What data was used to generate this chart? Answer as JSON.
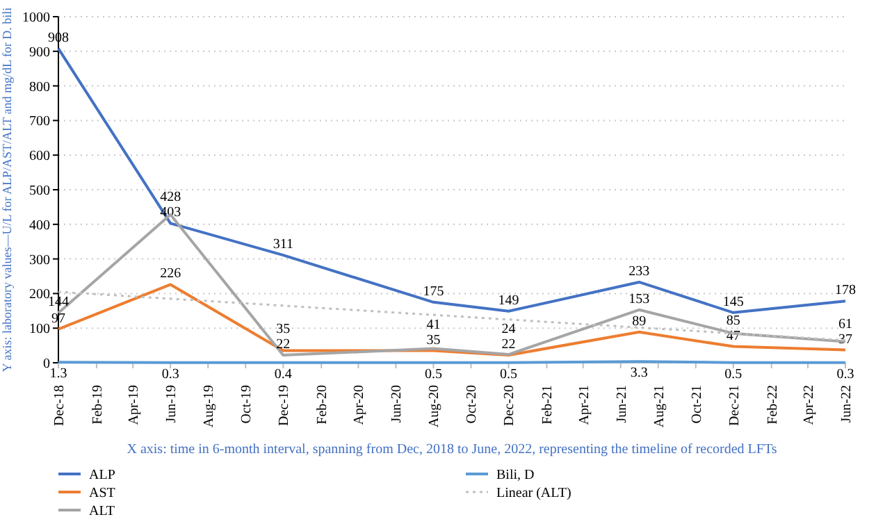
{
  "chart_data": {
    "type": "line",
    "xlabel": "X axis: time in 6-month interval, spanning from Dec, 2018 to June, 2022, representing the timeline of recorded LFTs",
    "ylabel": "Y axis: laboratory values—U/L for ALP/AST/ALT and mg/dL for D. bili",
    "x": [
      "2018-12",
      "2019-06",
      "2019-12",
      "2020-08",
      "2020-12",
      "2021-07",
      "2021-12",
      "2022-06"
    ],
    "series": [
      {
        "name": "ALP",
        "color": "#4472c4",
        "values": [
          908,
          403,
          311,
          175,
          149,
          233,
          145,
          178
        ]
      },
      {
        "name": "AST",
        "color": "#ed7d31",
        "values": [
          97,
          226,
          35,
          35,
          22,
          89,
          47,
          37
        ]
      },
      {
        "name": "ALT",
        "color": "#a5a5a5",
        "values": [
          144,
          428,
          22,
          41,
          24,
          153,
          85,
          61
        ]
      },
      {
        "name": "Bili, D",
        "color": "#5b9bd5",
        "values": [
          1.3,
          0.3,
          0.4,
          0.5,
          0.5,
          3.3,
          0.5,
          0.3
        ]
      },
      {
        "name": "Linear (ALT)",
        "color": "#bfbfbf",
        "type": "line",
        "line_style": "dotted",
        "x": [
          "2018-12",
          "2022-06"
        ],
        "values": [
          205,
          65
        ],
        "value_labels": [
          null,
          null
        ]
      }
    ],
    "data_labels": true,
    "xlim": [
      "2018-12",
      "2022-06"
    ],
    "xticks": [
      {
        "value": "2018-12",
        "label": "Dec-18"
      },
      {
        "value": "2019-02",
        "label": "Feb-19"
      },
      {
        "value": "2019-04",
        "label": "Apr-19"
      },
      {
        "value": "2019-06",
        "label": "Jun-19"
      },
      {
        "value": "2019-08",
        "label": "Aug-19"
      },
      {
        "value": "2019-10",
        "label": "Oct-19"
      },
      {
        "value": "2019-12",
        "label": "Dec-19"
      },
      {
        "value": "2020-02",
        "label": "Feb-20"
      },
      {
        "value": "2020-04",
        "label": "Apr-20"
      },
      {
        "value": "2020-06",
        "label": "Jun-20"
      },
      {
        "value": "2020-08",
        "label": "Aug-20"
      },
      {
        "value": "2020-10",
        "label": "Oct-20"
      },
      {
        "value": "2020-12",
        "label": "Dec-20"
      },
      {
        "value": "2021-02",
        "label": "Feb-21"
      },
      {
        "value": "2021-04",
        "label": "Apr-21"
      },
      {
        "value": "2021-06",
        "label": "Jun-21"
      },
      {
        "value": "2021-08",
        "label": "Aug-21"
      },
      {
        "value": "2021-10",
        "label": "Oct-21"
      },
      {
        "value": "2021-12",
        "label": "Dec-21"
      },
      {
        "value": "2022-02",
        "label": "Feb-22"
      },
      {
        "value": "2022-04",
        "label": "Apr-22"
      },
      {
        "value": "2022-06",
        "label": "Jun-22"
      }
    ],
    "ylim": [
      0,
      1000
    ],
    "yticks": [
      0,
      100,
      200,
      300,
      400,
      500,
      600,
      700,
      800,
      900,
      1000
    ],
    "grid": "y",
    "legend": "bottom",
    "marker": "none",
    "line_style": "solid"
  }
}
